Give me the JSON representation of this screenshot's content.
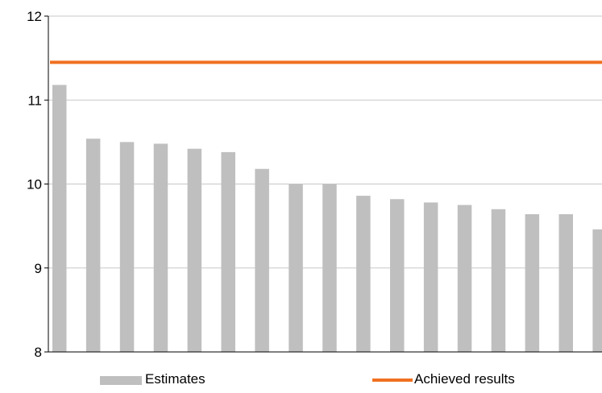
{
  "chart_data": {
    "type": "bar",
    "title": "",
    "xlabel": "",
    "ylabel": "",
    "ylim": [
      8,
      12
    ],
    "yticks": [
      8,
      9,
      10,
      11,
      12
    ],
    "grid": true,
    "legend_position": "bottom",
    "series": [
      {
        "name": "Estimates",
        "type": "bar",
        "color": "#bfbfbf",
        "values": [
          11.18,
          10.54,
          10.5,
          10.48,
          10.42,
          10.38,
          10.18,
          10.0,
          10.0,
          9.86,
          9.82,
          9.78,
          9.75,
          9.7,
          9.64,
          9.64,
          9.46
        ]
      },
      {
        "name": "Achieved results",
        "type": "line",
        "color": "#f07020",
        "value": 11.45
      }
    ]
  }
}
